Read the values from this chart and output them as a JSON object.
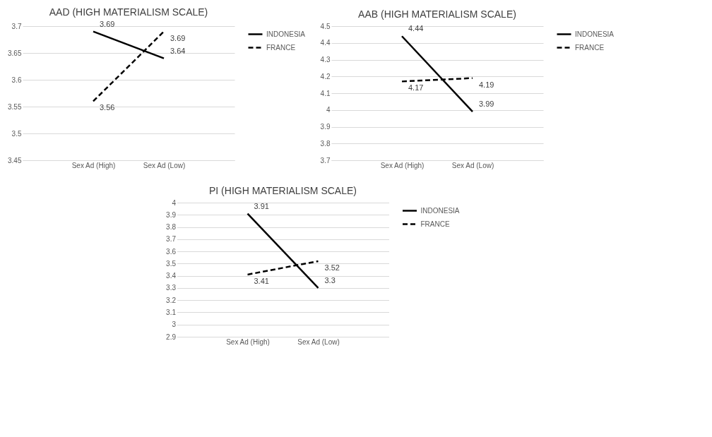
{
  "chart_data": [
    {
      "type": "line",
      "title": "AAD (HIGH MATERIALISM SCALE)",
      "categories": [
        "Sex Ad (High)",
        "Sex Ad (Low)"
      ],
      "series": [
        {
          "name": "INDONESIA",
          "color": "#000000",
          "line_style": "solid",
          "values": [
            3.69,
            3.64
          ]
        },
        {
          "name": "FRANCE",
          "color": "#000000",
          "line_style": "dashed",
          "values": [
            3.56,
            3.69
          ]
        }
      ],
      "ylim": [
        3.45,
        3.7
      ],
      "yticks": [
        3.45,
        3.5,
        3.55,
        3.6,
        3.65,
        3.7
      ],
      "grid": "y",
      "legend": "right",
      "data_labels": true
    },
    {
      "type": "line",
      "title": "AAB (HIGH MATERIALISM SCALE)",
      "categories": [
        "Sex Ad (High)",
        "Sex Ad (Low)"
      ],
      "series": [
        {
          "name": "INDONESIA",
          "color": "#000000",
          "line_style": "solid",
          "values": [
            4.44,
            3.99
          ]
        },
        {
          "name": "FRANCE",
          "color": "#000000",
          "line_style": "dashed",
          "values": [
            4.17,
            4.19
          ]
        }
      ],
      "ylim": [
        3.7,
        4.5
      ],
      "yticks": [
        3.7,
        3.8,
        3.9,
        4,
        4.1,
        4.2,
        4.3,
        4.4,
        4.5
      ],
      "grid": "y",
      "legend": "right",
      "data_labels": true
    },
    {
      "type": "line",
      "title": "PI (HIGH MATERIALISM SCALE)",
      "categories": [
        "Sex Ad (High)",
        "Sex Ad (Low)"
      ],
      "series": [
        {
          "name": "INDONESIA",
          "color": "#000000",
          "line_style": "solid",
          "values": [
            3.91,
            3.3
          ]
        },
        {
          "name": "FRANCE",
          "color": "#000000",
          "line_style": "dashed",
          "values": [
            3.41,
            3.52
          ]
        }
      ],
      "ylim": [
        2.9,
        4
      ],
      "yticks": [
        2.9,
        3,
        3.1,
        3.2,
        3.3,
        3.4,
        3.5,
        3.6,
        3.7,
        3.8,
        3.9,
        4
      ],
      "grid": "y",
      "legend": "right",
      "data_labels": true
    }
  ]
}
